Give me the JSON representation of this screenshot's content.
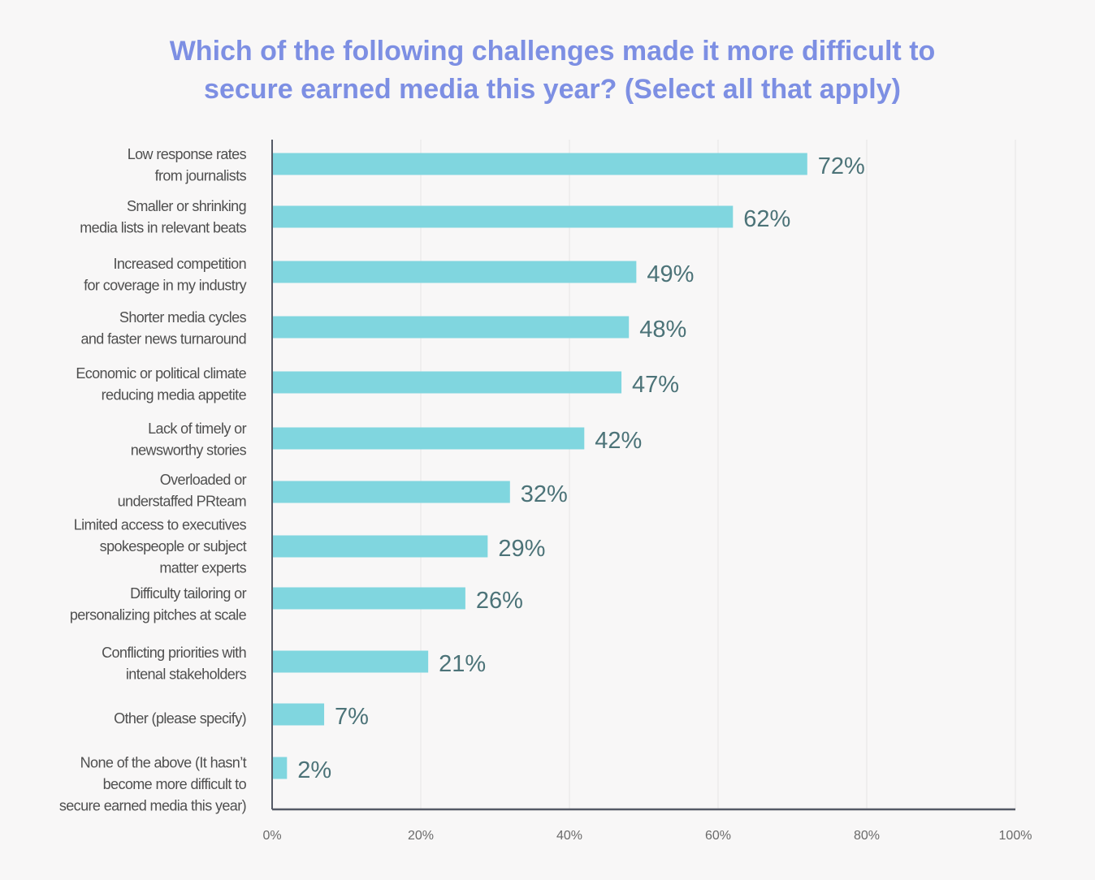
{
  "chart_data": {
    "type": "bar",
    "orientation": "horizontal",
    "title_lines": [
      "Which of the following challenges made it more difficult to",
      "secure earned media this year? (Select all that apply)"
    ],
    "categories": [
      [
        "Low response rates",
        "from journalists"
      ],
      [
        "Smaller or shrinking",
        "media lists in relevant beats"
      ],
      [
        "Increased competition",
        "for coverage in my industry"
      ],
      [
        "Shorter media cycles",
        "and faster news turnaround"
      ],
      [
        "Economic or political climate",
        "reducing  media appetite"
      ],
      [
        "Lack of timely or",
        "newsworthy stories"
      ],
      [
        "Overloaded or",
        "understaffed PRteam"
      ],
      [
        "Limited access to executives",
        "spokespeople or subject",
        "matter experts"
      ],
      [
        "Difficulty tailoring or",
        "personalizing pitches at scale"
      ],
      [
        "Conflicting priorities with",
        "intenal stakeholders"
      ],
      [
        "Other (please specify)"
      ],
      [
        "None of the above (It hasn’t",
        "become more difficult to",
        "secure earned media this year)"
      ]
    ],
    "values": [
      72,
      62,
      49,
      48,
      47,
      42,
      32,
      29,
      26,
      21,
      7,
      2
    ],
    "value_labels": [
      "72%",
      "62%",
      "49%",
      "48%",
      "47%",
      "42%",
      "32%",
      "29%",
      "26%",
      "21%",
      "7%",
      "2%"
    ],
    "xlim": [
      0,
      100
    ],
    "xticks": [
      0,
      20,
      40,
      60,
      80,
      100
    ],
    "xtick_labels": [
      "0%",
      "20%",
      "40%",
      "60%",
      "80%",
      "100%"
    ],
    "grid": true,
    "xlabel": "",
    "ylabel": "",
    "colors": {
      "bar": "#80d6df",
      "title": "#7d8fe3",
      "value": "#4c7378"
    }
  }
}
